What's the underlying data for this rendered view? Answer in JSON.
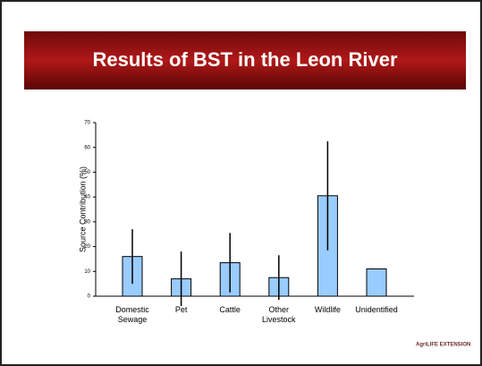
{
  "title": "Results of BST in the Leon River",
  "logo": "AgriLIFE EXTENSION",
  "chart_data": {
    "type": "bar",
    "categories": [
      "Domestic Sewage",
      "Pet",
      "Cattle",
      "Other Livestock",
      "Wildlife",
      "Unidentified"
    ],
    "values": [
      16,
      7,
      13.5,
      7.5,
      40.5,
      11
    ],
    "errors": [
      11,
      11,
      12,
      9,
      22,
      null
    ],
    "color": "#99ccff",
    "ylabel": "Source Contribution (%)",
    "ylim": [
      0,
      70
    ],
    "yticks": [
      0,
      10,
      20,
      30,
      40,
      50,
      60,
      70
    ]
  }
}
